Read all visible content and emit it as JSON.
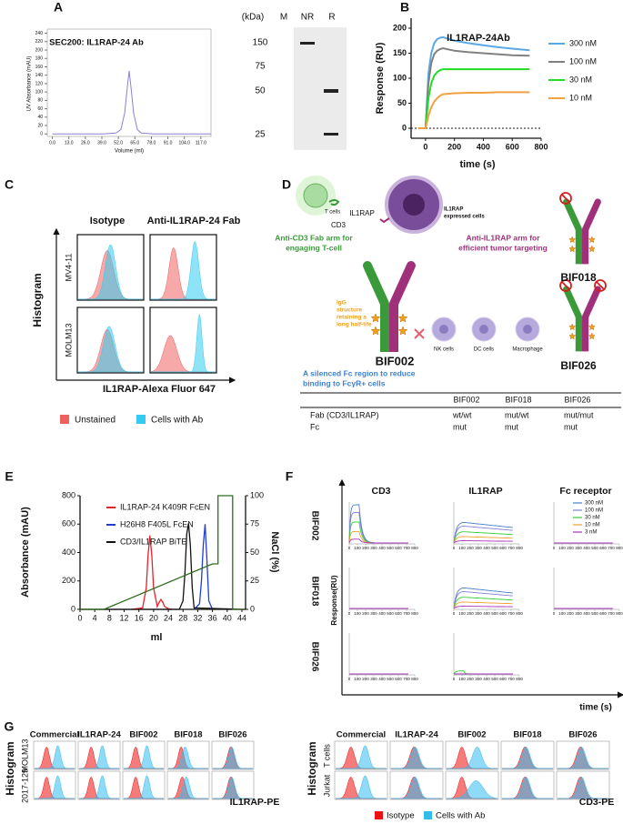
{
  "panel_labels": [
    "A",
    "B",
    "C",
    "D",
    "E",
    "F",
    "G"
  ],
  "chart_data": [
    {
      "type": "line",
      "title": "SEC200: IL1RAP-24 Ab",
      "x_label": "Volume (ml)",
      "y_label": "UV Absorbance (mAU)",
      "xlim": [
        -4,
        125
      ],
      "ylim": [
        -6,
        250
      ],
      "xticks": [
        {
          "value": 0,
          "label": "0.0"
        },
        {
          "value": 13,
          "label": "13.0"
        },
        {
          "value": 26,
          "label": "26.0"
        },
        {
          "value": 39,
          "label": "39.0"
        },
        {
          "value": 52,
          "label": "52.0"
        },
        {
          "value": 65,
          "label": "65.0"
        },
        {
          "value": 78,
          "label": "78.0"
        },
        {
          "value": 91,
          "label": "91.0"
        },
        {
          "value": 104,
          "label": "104.0"
        },
        {
          "value": 117,
          "label": "117.0"
        }
      ],
      "yticks": [
        0,
        20,
        40,
        60,
        80,
        100,
        120,
        140,
        160,
        180,
        200,
        220,
        240
      ],
      "x": [
        0,
        40,
        50,
        54,
        57,
        59,
        60.5,
        62,
        64,
        67,
        70,
        80,
        125
      ],
      "series": [
        {
          "color": "#8a7fd6",
          "values": [
            0,
            0,
            2,
            10,
            50,
            110,
            150,
            110,
            50,
            10,
            2,
            0,
            0
          ]
        }
      ]
    },
    {
      "type": "line",
      "title": "IL1RAP-24Ab",
      "x_label": "time (s)",
      "y_label": "Response (RU)",
      "xlim": [
        -100,
        800
      ],
      "ylim": [
        -20,
        220
      ],
      "xticks": [
        0,
        200,
        400,
        600,
        800
      ],
      "yticks": [
        0,
        50,
        100,
        150,
        200
      ],
      "x": [
        -50,
        0,
        20,
        40,
        60,
        80,
        100,
        120,
        200,
        300,
        400,
        500,
        600,
        720
      ],
      "series": [
        {
          "name": "300 nM",
          "color": "#5aa9e6",
          "values": [
            0,
            0,
            110,
            150,
            170,
            178,
            181,
            182,
            175,
            170,
            166,
            162,
            159,
            156
          ]
        },
        {
          "name": "100 nM",
          "color": "#808080",
          "values": [
            0,
            0,
            90,
            130,
            148,
            155,
            158,
            160,
            155,
            152,
            150,
            148,
            146,
            145
          ]
        },
        {
          "name": "30 nM",
          "color": "#22dd22",
          "values": [
            0,
            0,
            60,
            90,
            105,
            112,
            116,
            118,
            118,
            118,
            118,
            118,
            118,
            118
          ]
        },
        {
          "name": "10 nM",
          "color": "#f5a040",
          "values": [
            0,
            0,
            25,
            42,
            53,
            60,
            65,
            68,
            70,
            71,
            71,
            72,
            72,
            72
          ]
        }
      ]
    },
    {
      "type": "line",
      "x_label": "ml",
      "y_label": "Absorbance (mAU)",
      "y2_label": "NaCl (%)",
      "xlim": [
        0,
        45
      ],
      "ylim": [
        0,
        800
      ],
      "y2lim": [
        0,
        100
      ],
      "xticks": [
        0,
        4,
        8,
        12,
        16,
        20,
        24,
        28,
        32,
        36,
        40,
        44
      ],
      "yticks": [
        0,
        200,
        400,
        600,
        800
      ],
      "y2ticks": [
        0,
        25,
        50,
        75,
        100
      ],
      "series": [
        {
          "name": "IL1RAP-24 K409R FcEN",
          "color": "#e8202a",
          "x": [
            14,
            17,
            18,
            18.5,
            19,
            19.5,
            20,
            21,
            21.5,
            22,
            22.5,
            23,
            24,
            25
          ],
          "values": [
            0,
            10,
            150,
            380,
            520,
            380,
            150,
            20,
            50,
            70,
            50,
            20,
            5,
            0
          ]
        },
        {
          "name": "H26H8 F405L FcEN",
          "color": "#1f3fd0",
          "x": [
            31,
            32.5,
            33,
            33.5,
            34,
            34.5,
            35,
            36
          ],
          "values": [
            0,
            40,
            200,
            450,
            600,
            350,
            60,
            0
          ]
        },
        {
          "name": "CD3/IL1RAP BiTE",
          "color": "#111111",
          "x": [
            0,
            27,
            28,
            28.5,
            29,
            29.5,
            30,
            30.5,
            31,
            44
          ],
          "values": [
            0,
            0,
            60,
            250,
            530,
            605,
            450,
            150,
            10,
            0
          ]
        },
        {
          "color": "#2f6e1f",
          "axis": "y2",
          "x": [
            0,
            6.5,
            36,
            37.5,
            37.5,
            41.5,
            41.5,
            44
          ],
          "values": [
            0,
            0,
            40,
            40,
            100,
            100,
            0,
            0
          ]
        }
      ]
    }
  ],
  "gel": {
    "unit_label": "(kDa)",
    "lanes": [
      "M",
      "NR",
      "R"
    ],
    "markers": [
      150,
      75,
      50,
      25
    ]
  },
  "panel_c": {
    "columns": [
      "Isotype",
      "Anti-IL1RAP-24 Fab"
    ],
    "rows": [
      "MV4-11",
      "MOLM13"
    ],
    "y_label": "Histogram",
    "x_label": "IL1RAP-Alexa Fluor 647",
    "legend": [
      {
        "name": "Unstained",
        "color": "#f06060"
      },
      {
        "name": "Cells with Ab",
        "color": "#33ccee"
      }
    ]
  },
  "panel_d": {
    "t_cells": "T cells",
    "cd3": "CD3",
    "il1rap": "IL1RAP",
    "il1rap_cells": [
      "IL1RAP",
      "expressed cells"
    ],
    "cd3_arm": [
      "Anti-CD3 Fab arm for",
      "engaging T-cell"
    ],
    "il1rap_arm": [
      "Anti-IL1RAP arm for",
      "efficient tumor targeting"
    ],
    "igg": [
      "IgG",
      "structure",
      "retaining a",
      "long half-life"
    ],
    "main": "BIF002",
    "nk": "NK cells",
    "dc": "DC cells",
    "macrophage": "Macrophage",
    "fc_note": [
      "A silenced Fc region to reduce",
      "binding to FcγR+ cells"
    ],
    "variant1": "BIF018",
    "variant2": "BIF026",
    "table": {
      "columns": [
        "BIF002",
        "BIF018",
        "BIF026"
      ],
      "rows": [
        {
          "label": "Fab (CD3/IL1RAP)",
          "cells": [
            "wt/wt",
            "mut/wt",
            "mut/mut"
          ]
        },
        {
          "label": "Fc",
          "cells": [
            "mut",
            "mut",
            "mut"
          ]
        }
      ]
    }
  },
  "panel_f": {
    "columns": [
      "CD3",
      "IL1RAP",
      "Fc receptor"
    ],
    "rows": [
      "BIF002",
      "BIF018",
      "BIF026"
    ],
    "y_label": "Response(RU)",
    "x_label": "time (s)",
    "xticks": [
      0,
      100,
      200,
      300,
      400,
      500,
      600,
      700,
      800
    ],
    "legend": [
      {
        "name": "300 nM",
        "color": "#4a7fd0"
      },
      {
        "name": "100 nM",
        "color": "#8080e0"
      },
      {
        "name": "30 nM",
        "color": "#33cc33"
      },
      {
        "name": "10 nM",
        "color": "#f0a030"
      },
      {
        "name": "3 nM",
        "color": "#aa33bb"
      }
    ]
  },
  "panel_g": {
    "y_label": "Histogram",
    "left": {
      "columns": [
        "Commercial",
        "IL1RAP-24",
        "BIF002",
        "BIF018",
        "BIF026"
      ],
      "rows": [
        "MOLM13",
        "2017-129"
      ],
      "x_label": "IL1RAP-PE"
    },
    "right": {
      "columns": [
        "Commercial",
        "IL1RAP-24",
        "BIF002",
        "BIF018",
        "BIF026"
      ],
      "rows": [
        "T cells",
        "Jurkat"
      ],
      "x_label": "CD3-PE"
    },
    "legend": [
      {
        "name": "Isotype",
        "color": "#ee1111"
      },
      {
        "name": "Cells with Ab",
        "color": "#33bbee"
      }
    ]
  }
}
